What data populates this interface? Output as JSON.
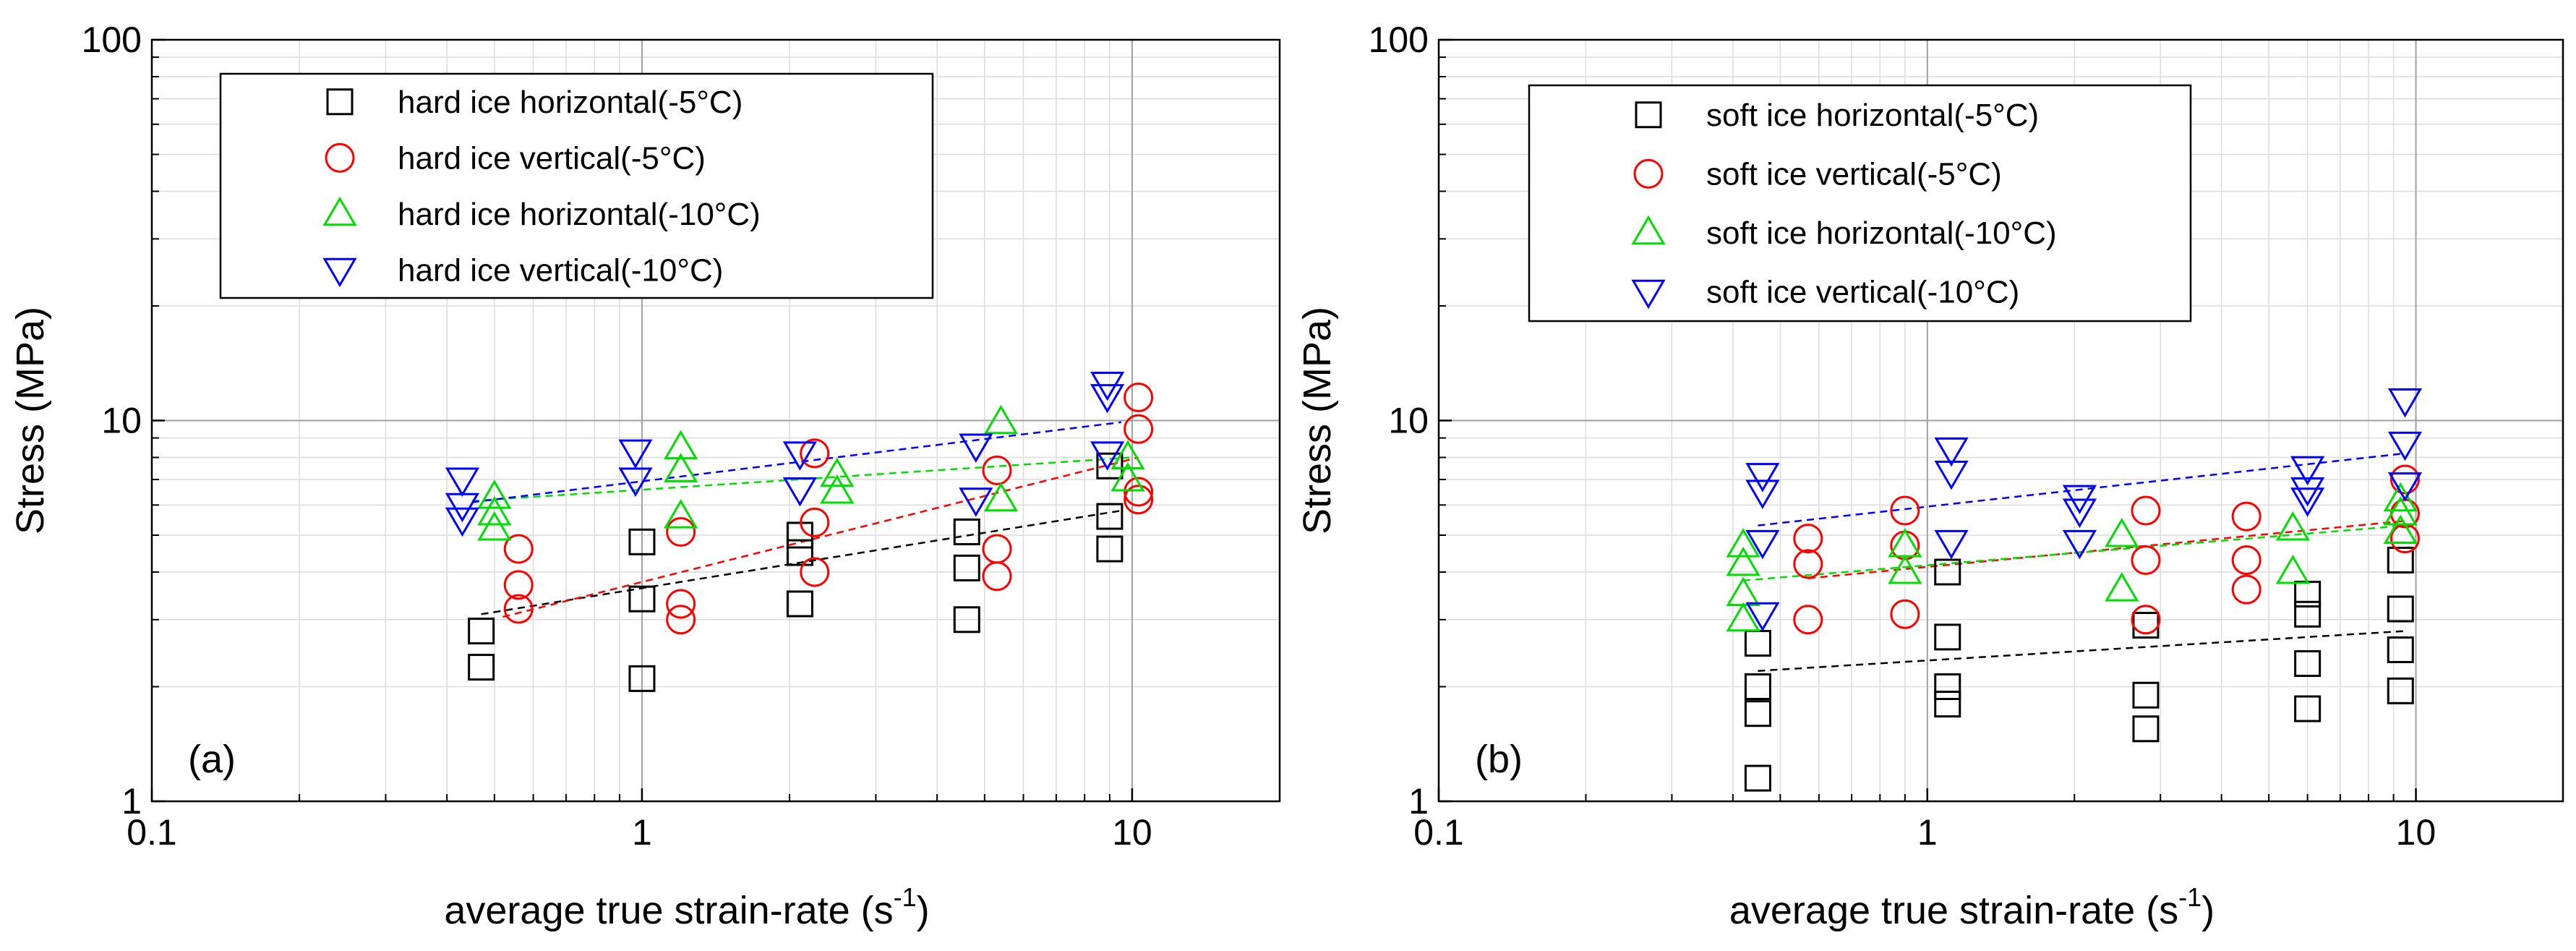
{
  "colors": {
    "hard_horizontal_5": "#000000",
    "hard_vertical_5": "#ff0000",
    "hard_horizontal_10": "#00dd00",
    "hard_vertical_10": "#0000ff"
  },
  "chart_data": [
    {
      "type": "scatter",
      "panel_label": "(a)",
      "title": "",
      "xlabel": "average true strain-rate (s",
      "xlabel_sup": "-1",
      "xlabel_end": ")",
      "ylabel": "Stress (MPa)",
      "xscale": "log",
      "yscale": "log",
      "xlim": [
        0.1,
        20
      ],
      "ylim": [
        1,
        100
      ],
      "x_ticks": [
        "0.1",
        "1",
        "10"
      ],
      "y_ticks": [
        "1",
        "10",
        "100"
      ],
      "grid": true,
      "legend_position": "top-left",
      "series": [
        {
          "name": "hard ice horizontal(-5°C)",
          "marker": "square",
          "color": "#000000",
          "points": [
            [
              0.47,
              2.8
            ],
            [
              0.47,
              2.25
            ],
            [
              1.0,
              4.8
            ],
            [
              1.0,
              3.4
            ],
            [
              1.0,
              2.1
            ],
            [
              2.1,
              5.0
            ],
            [
              2.1,
              4.5
            ],
            [
              2.1,
              3.3
            ],
            [
              4.6,
              5.1
            ],
            [
              4.6,
              4.1
            ],
            [
              4.6,
              3.0
            ],
            [
              9.0,
              7.6
            ],
            [
              9.0,
              5.6
            ],
            [
              9.0,
              4.6
            ]
          ],
          "fit": [
            [
              0.47,
              3.1
            ],
            [
              9.5,
              5.8
            ]
          ]
        },
        {
          "name": "hard ice vertical(-5°C)",
          "marker": "circle",
          "color": "#ff0000",
          "points": [
            [
              0.56,
              4.6
            ],
            [
              0.56,
              3.7
            ],
            [
              0.56,
              3.2
            ],
            [
              1.2,
              5.1
            ],
            [
              1.2,
              3.3
            ],
            [
              1.2,
              3.0
            ],
            [
              2.25,
              8.2
            ],
            [
              2.25,
              5.4
            ],
            [
              2.25,
              4.0
            ],
            [
              5.3,
              7.4
            ],
            [
              5.3,
              4.6
            ],
            [
              5.3,
              3.9
            ],
            [
              10.3,
              11.5
            ],
            [
              10.3,
              9.5
            ],
            [
              10.3,
              6.5
            ],
            [
              10.3,
              6.2
            ]
          ],
          "fit": [
            [
              0.52,
              3.05
            ],
            [
              10.3,
              8.0
            ]
          ]
        },
        {
          "name": "hard ice horizontal(-10°C)",
          "marker": "triangle-up",
          "color": "#00dd00",
          "points": [
            [
              0.5,
              6.3
            ],
            [
              0.5,
              5.7
            ],
            [
              0.5,
              5.2
            ],
            [
              1.2,
              8.5
            ],
            [
              1.2,
              7.4
            ],
            [
              1.2,
              5.6
            ],
            [
              2.5,
              7.2
            ],
            [
              2.5,
              6.5
            ],
            [
              5.4,
              9.9
            ],
            [
              5.4,
              6.2
            ],
            [
              9.8,
              8.0
            ],
            [
              9.8,
              7.0
            ]
          ],
          "fit": [
            [
              0.45,
              6.15
            ],
            [
              10.0,
              8.0
            ]
          ]
        },
        {
          "name": "hard ice vertical(-10°C)",
          "marker": "triangle-down",
          "color": "#0000ff",
          "points": [
            [
              0.43,
              7.0
            ],
            [
              0.43,
              6.0
            ],
            [
              0.43,
              5.5
            ],
            [
              0.97,
              8.3
            ],
            [
              0.97,
              7.0
            ],
            [
              2.1,
              8.2
            ],
            [
              2.1,
              6.6
            ],
            [
              4.8,
              8.6
            ],
            [
              4.8,
              6.2
            ],
            [
              8.9,
              12.5
            ],
            [
              8.9,
              11.6
            ],
            [
              8.9,
              8.2
            ]
          ],
          "fit": [
            [
              0.45,
              6.1
            ],
            [
              9.5,
              9.9
            ]
          ]
        }
      ]
    },
    {
      "type": "scatter",
      "panel_label": "(b)",
      "title": "",
      "xlabel": "average true strain-rate (s",
      "xlabel_sup": "-1",
      "xlabel_end": ")",
      "ylabel": "Stress (MPa)",
      "xscale": "log",
      "yscale": "log",
      "xlim": [
        0.1,
        20
      ],
      "ylim": [
        1,
        100
      ],
      "x_ticks": [
        "0.1",
        "1",
        "10"
      ],
      "y_ticks": [
        "1",
        "10",
        "100"
      ],
      "grid": true,
      "legend_position": "top-center",
      "series": [
        {
          "name": "soft ice horizontal(-5°C)",
          "marker": "square",
          "color": "#000000",
          "points": [
            [
              0.45,
              2.6
            ],
            [
              0.45,
              2.0
            ],
            [
              0.45,
              1.7
            ],
            [
              0.45,
              1.15
            ],
            [
              1.1,
              4.0
            ],
            [
              1.1,
              2.7
            ],
            [
              1.1,
              2.0
            ],
            [
              1.1,
              1.8
            ],
            [
              2.8,
              2.9
            ],
            [
              2.8,
              1.9
            ],
            [
              2.8,
              1.55
            ],
            [
              6.0,
              3.5
            ],
            [
              6.0,
              3.1
            ],
            [
              6.0,
              2.3
            ],
            [
              6.0,
              1.75
            ],
            [
              9.3,
              4.3
            ],
            [
              9.3,
              3.2
            ],
            [
              9.3,
              2.5
            ],
            [
              9.3,
              1.95
            ]
          ],
          "fit": [
            [
              0.45,
              2.2
            ],
            [
              9.5,
              2.8
            ]
          ]
        },
        {
          "name": "soft ice vertical(-5°C)",
          "marker": "circle",
          "color": "#ff0000",
          "points": [
            [
              0.57,
              4.9
            ],
            [
              0.57,
              4.2
            ],
            [
              0.57,
              3.0
            ],
            [
              0.9,
              5.8
            ],
            [
              0.9,
              4.7
            ],
            [
              0.9,
              3.1
            ],
            [
              2.8,
              5.8
            ],
            [
              2.8,
              4.3
            ],
            [
              2.8,
              3.0
            ],
            [
              4.5,
              5.6
            ],
            [
              4.5,
              4.3
            ],
            [
              4.5,
              3.6
            ],
            [
              9.5,
              7.0
            ],
            [
              9.5,
              5.7
            ],
            [
              9.5,
              4.9
            ]
          ],
          "fit": [
            [
              0.57,
              3.85
            ],
            [
              9.5,
              5.45
            ]
          ]
        },
        {
          "name": "soft ice horizontal(-10°C)",
          "marker": "triangle-up",
          "color": "#00dd00",
          "points": [
            [
              0.42,
              4.7
            ],
            [
              0.42,
              4.2
            ],
            [
              0.42,
              3.5
            ],
            [
              0.42,
              3.0
            ],
            [
              0.9,
              4.7
            ],
            [
              0.9,
              4.0
            ],
            [
              2.5,
              5.0
            ],
            [
              2.5,
              3.6
            ],
            [
              5.6,
              5.2
            ],
            [
              5.6,
              4.0
            ],
            [
              9.3,
              6.2
            ],
            [
              9.3,
              5.7
            ],
            [
              9.3,
              5.1
            ]
          ],
          "fit": [
            [
              0.42,
              3.8
            ],
            [
              9.5,
              5.3
            ]
          ]
        },
        {
          "name": "soft ice vertical(-10°C)",
          "marker": "triangle-down",
          "color": "#0000ff",
          "points": [
            [
              0.46,
              7.2
            ],
            [
              0.46,
              6.5
            ],
            [
              0.46,
              4.8
            ],
            [
              0.46,
              3.1
            ],
            [
              1.12,
              8.4
            ],
            [
              1.12,
              7.3
            ],
            [
              1.12,
              4.8
            ],
            [
              2.05,
              6.3
            ],
            [
              2.05,
              5.8
            ],
            [
              2.05,
              4.8
            ],
            [
              6.0,
              7.5
            ],
            [
              6.0,
              6.6
            ],
            [
              6.0,
              6.2
            ],
            [
              9.5,
              11.3
            ],
            [
              9.5,
              8.7
            ],
            [
              9.5,
              6.8
            ]
          ],
          "fit": [
            [
              0.45,
              5.3
            ],
            [
              9.5,
              8.2
            ]
          ]
        }
      ]
    }
  ]
}
